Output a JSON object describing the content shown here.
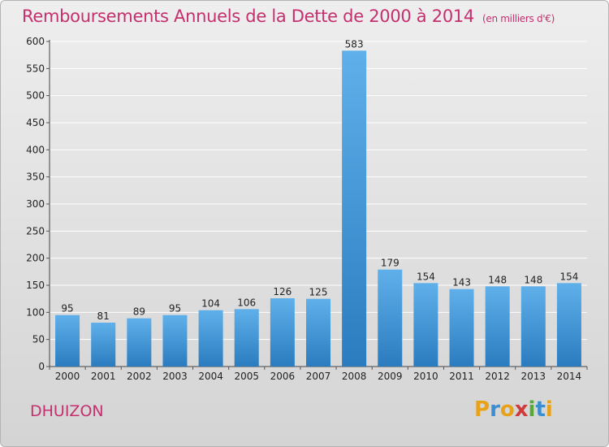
{
  "header": {
    "title": "Remboursements Annuels de la Dette de 2000 à 2014",
    "unit": "(en milliers d'€)"
  },
  "footer": {
    "commune": "DHUIZON",
    "logo_text": "Proxiti"
  },
  "colors": {
    "title": "#c4306e",
    "bar_top": "#5fb0ea",
    "bar_bottom": "#2a7cbf",
    "grid": "#ffffff"
  },
  "chart_data": {
    "type": "bar",
    "title": "Remboursements Annuels de la Dette de 2000 à 2014",
    "xlabel": "",
    "ylabel": "",
    "categories": [
      "2000",
      "2001",
      "2002",
      "2003",
      "2004",
      "2005",
      "2006",
      "2007",
      "2008",
      "2009",
      "2010",
      "2011",
      "2012",
      "2013",
      "2014"
    ],
    "values": [
      95,
      81,
      89,
      95,
      104,
      106,
      126,
      125,
      583,
      179,
      154,
      143,
      148,
      148,
      154
    ],
    "ylim": [
      0,
      600
    ],
    "yticks": [
      0,
      50,
      100,
      150,
      200,
      250,
      300,
      350,
      400,
      450,
      500,
      550,
      600
    ],
    "grid": true,
    "data_labels": true
  }
}
